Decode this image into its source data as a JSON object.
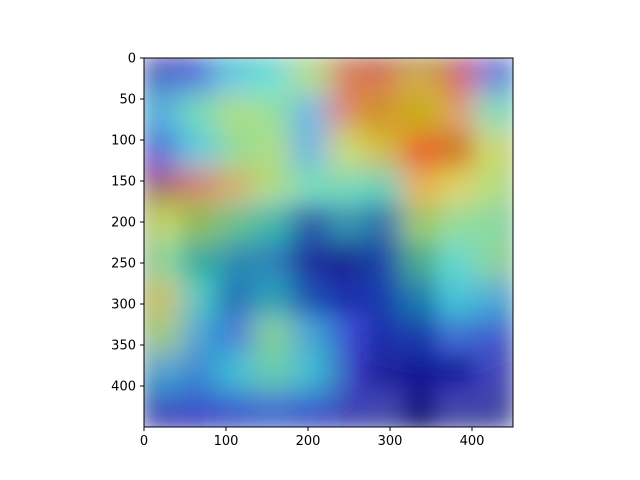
{
  "chart_data": {
    "type": "heatmap",
    "title": "",
    "xlabel": "",
    "ylabel": "",
    "xlim": [
      0,
      450
    ],
    "ylim": [
      450,
      0
    ],
    "x_ticks": [
      0,
      100,
      200,
      300,
      400
    ],
    "y_ticks": [
      0,
      50,
      100,
      150,
      200,
      250,
      300,
      350,
      400
    ],
    "colormap": "jet",
    "underlay_image": "grebe-duck-on-water-with-reflection",
    "heatmap_grid": {
      "rows": 10,
      "cols": 10,
      "values": [
        [
          0.08,
          0.12,
          0.35,
          0.4,
          0.55,
          0.8,
          0.82,
          0.7,
          0.85,
          0.2
        ],
        [
          0.3,
          0.45,
          0.55,
          0.5,
          0.3,
          0.78,
          0.72,
          0.65,
          0.75,
          0.45
        ],
        [
          0.15,
          0.35,
          0.5,
          0.55,
          0.3,
          0.6,
          0.65,
          0.85,
          0.75,
          0.6
        ],
        [
          0.95,
          0.8,
          0.7,
          0.55,
          0.45,
          0.45,
          0.4,
          0.7,
          0.65,
          0.55
        ],
        [
          0.6,
          0.55,
          0.45,
          0.38,
          0.2,
          0.3,
          0.25,
          0.55,
          0.5,
          0.48
        ],
        [
          0.5,
          0.4,
          0.3,
          0.25,
          0.1,
          0.08,
          0.2,
          0.45,
          0.4,
          0.5
        ],
        [
          0.65,
          0.4,
          0.25,
          0.35,
          0.2,
          0.15,
          0.18,
          0.3,
          0.35,
          0.3
        ],
        [
          0.55,
          0.3,
          0.2,
          0.5,
          0.3,
          0.12,
          0.15,
          0.18,
          0.2,
          0.15
        ],
        [
          0.3,
          0.25,
          0.35,
          0.45,
          0.35,
          0.1,
          0.08,
          0.1,
          0.1,
          0.08
        ],
        [
          0.1,
          0.12,
          0.15,
          0.2,
          0.15,
          0.08,
          0.05,
          0.05,
          0.05,
          0.05
        ]
      ]
    },
    "image_grid": {
      "rows": 10,
      "cols": 10,
      "colors": [
        [
          "#aab6bf",
          "#aab6bf",
          "#aab6bf",
          "#b2bcc3",
          "#b5bec6",
          "#b0b7bd",
          "#a8adb2",
          "#9aa0a4",
          "#a7aeb3",
          "#b0b6bb"
        ],
        [
          "#a6b1bb",
          "#a6b1bb",
          "#aab4bc",
          "#b0b9c0",
          "#b3bcc4",
          "#adb4ba",
          "#9b8a65",
          "#8a7a3c",
          "#b3b8bd",
          "#b3b8bd"
        ],
        [
          "#a1acb6",
          "#a1acb6",
          "#a6b0b8",
          "#acb5bc",
          "#b0b8bf",
          "#a9b0b6",
          "#a39071",
          "#c8836b",
          "#9c7e60",
          "#b0b5ba"
        ],
        [
          "#9ea8b2",
          "#9ea8b2",
          "#a3acb4",
          "#a9b1b8",
          "#adb5bc",
          "#a6adb3",
          "#9e9c86",
          "#c8aa8c",
          "#b6bbc0",
          "#b2b7bc"
        ],
        [
          "#9ba5af",
          "#6c6e58",
          "#7a7a5e",
          "#6a6c52",
          "#5f6347",
          "#6f7052",
          "#5d6249",
          "#8a8a7c",
          "#aab0b6",
          "#a9afb5"
        ],
        [
          "#98a2ac",
          "#4e5650",
          "#5b6054",
          "#6d7166",
          "#4a4e48",
          "#3e4141",
          "#3b3e40",
          "#4f5256",
          "#a3a9af",
          "#a2a8ae"
        ],
        [
          "#8f9aa4",
          "#7d8893",
          "#5a6068",
          "#535962",
          "#4a5059",
          "#3f454e",
          "#3a4049",
          "#3f454e",
          "#9aa1a7",
          "#9ba2a8"
        ],
        [
          "#8c97a1",
          "#8893a0",
          "#8d98a3",
          "#8c97a2",
          "#8a95a0",
          "#86919c",
          "#3f454d",
          "#3c4249",
          "#8e969d",
          "#939aa1"
        ],
        [
          "#89949e",
          "#87929d",
          "#8b96a1",
          "#8a95a0",
          "#88939e",
          "#8a95a0",
          "#4a5057",
          "#2e3338",
          "#414750",
          "#8e959c"
        ],
        [
          "#86919b",
          "#84909a",
          "#88939e",
          "#87929d",
          "#86919c",
          "#88939e",
          "#8a95a0",
          "#3c4249",
          "#8d949b",
          "#8d949b"
        ]
      ]
    }
  }
}
